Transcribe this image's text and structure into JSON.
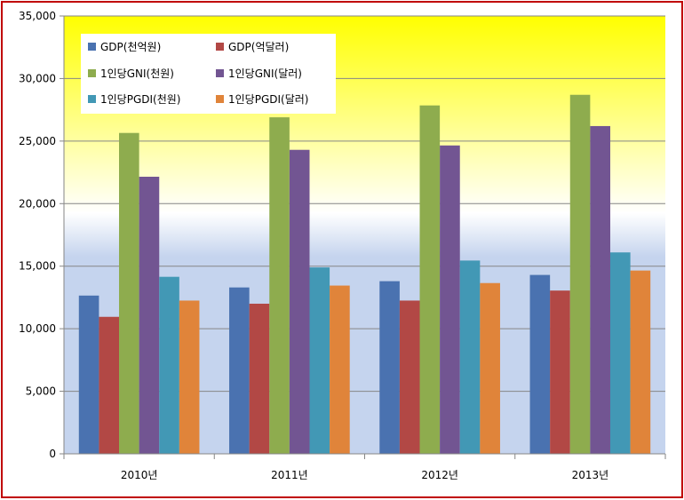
{
  "chart_data": {
    "type": "bar",
    "title": "",
    "xlabel": "",
    "ylabel": "",
    "categories": [
      "2010년",
      "2011년",
      "2012년",
      "2013년"
    ],
    "ylim": [
      0,
      35000
    ],
    "yticks": [
      "0",
      "5,000",
      "10,000",
      "15,000",
      "20,000",
      "25,000",
      "30,000",
      "35,000"
    ],
    "grid": true,
    "legend_position": "top-left",
    "series": [
      {
        "name": "GDP(천억원)",
        "color": "#4a72b0",
        "values": [
          12650,
          13300,
          13800,
          14300
        ]
      },
      {
        "name": "GDP(억달러)",
        "color": "#b24845",
        "values": [
          10950,
          12000,
          12250,
          13050
        ]
      },
      {
        "name": "1인당GNI(천원)",
        "color": "#8eac4e",
        "values": [
          25650,
          26900,
          27850,
          28700
        ]
      },
      {
        "name": "1인당GNI(달러)",
        "color": "#725592",
        "values": [
          22150,
          24300,
          24650,
          26200
        ]
      },
      {
        "name": "1인당PGDI(천원)",
        "color": "#4298b5",
        "values": [
          14150,
          14900,
          15450,
          16100
        ]
      },
      {
        "name": "1인당PGDI(달러)",
        "color": "#e0843a",
        "values": [
          12250,
          13450,
          13650,
          14650
        ]
      }
    ],
    "background": {
      "top": "#ffff00",
      "middle": "#ffffff",
      "bottom": "#c5d4ee"
    }
  }
}
